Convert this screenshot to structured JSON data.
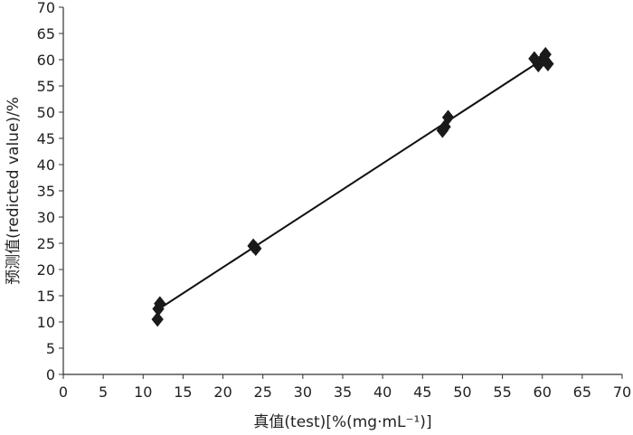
{
  "chart_data": {
    "type": "scatter",
    "title": "",
    "xlabel": "真值(test)[%(mg·mL⁻¹)]",
    "ylabel": "预测值(redicted value)/%",
    "xlim": [
      0,
      70
    ],
    "ylim": [
      0,
      70
    ],
    "xticks": [
      0,
      5,
      10,
      15,
      20,
      25,
      30,
      35,
      40,
      45,
      50,
      55,
      60,
      65,
      70
    ],
    "yticks": [
      0,
      5,
      10,
      15,
      20,
      25,
      30,
      35,
      40,
      45,
      50,
      55,
      60,
      65,
      70
    ],
    "grid": false,
    "legend": "none",
    "marker": "diamond",
    "marker_color": "#1a1a1a",
    "series": [
      {
        "points": [
          {
            "x": 11.8,
            "y": 10.5
          },
          {
            "x": 11.9,
            "y": 12.5
          },
          {
            "x": 12.1,
            "y": 13.5
          },
          {
            "x": 23.8,
            "y": 24.5
          },
          {
            "x": 24.1,
            "y": 24.0
          },
          {
            "x": 47.5,
            "y": 46.5
          },
          {
            "x": 47.8,
            "y": 47.2
          },
          {
            "x": 48.2,
            "y": 49.0
          },
          {
            "x": 59.0,
            "y": 60.2
          },
          {
            "x": 59.5,
            "y": 59.0
          },
          {
            "x": 60.0,
            "y": 60.0
          },
          {
            "x": 60.4,
            "y": 61.0
          },
          {
            "x": 60.7,
            "y": 59.2
          }
        ]
      }
    ],
    "fit_line": {
      "x": [
        12,
        60
      ],
      "y": [
        12.5,
        60
      ]
    }
  }
}
